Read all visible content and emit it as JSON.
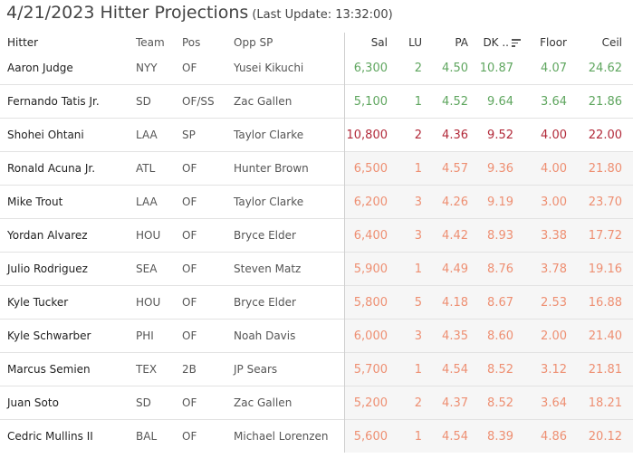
{
  "title": "4/21/2023 Hitter Projections",
  "subtitle": "(Last Update: 13:32:00)",
  "columns": {
    "hitter": "Hitter",
    "team": "Team",
    "pos": "Pos",
    "opp": "Opp SP",
    "sal": "Sal",
    "lu": "LU",
    "pa": "PA",
    "dk": "DK ..",
    "floor": "Floor",
    "ceil": "Ceil"
  },
  "colors": {
    "green": "#5fa65f",
    "red": "#b22a3a",
    "salmon": "#ee8f72"
  },
  "rows": [
    {
      "hitter": "Aaron Judge",
      "team": "NYY",
      "pos": "OF",
      "opp": "Yusei Kikuchi",
      "sal": "6,300",
      "lu": "2",
      "pa": "4.50",
      "dk": "10.87",
      "floor": "4.07",
      "ceil": "24.62",
      "tone": "green"
    },
    {
      "hitter": "Fernando Tatis Jr.",
      "team": "SD",
      "pos": "OF/SS",
      "opp": "Zac Gallen",
      "sal": "5,100",
      "lu": "1",
      "pa": "4.52",
      "dk": "9.64",
      "floor": "3.64",
      "ceil": "21.86",
      "tone": "green"
    },
    {
      "hitter": "Shohei Ohtani",
      "team": "LAA",
      "pos": "SP",
      "opp": "Taylor Clarke",
      "sal": "10,800",
      "lu": "2",
      "pa": "4.36",
      "dk": "9.52",
      "floor": "4.00",
      "ceil": "22.00",
      "tone": "red"
    },
    {
      "hitter": "Ronald Acuna Jr.",
      "team": "ATL",
      "pos": "OF",
      "opp": "Hunter Brown",
      "sal": "6,500",
      "lu": "1",
      "pa": "4.57",
      "dk": "9.36",
      "floor": "4.00",
      "ceil": "21.80",
      "tone": "salmon"
    },
    {
      "hitter": "Mike Trout",
      "team": "LAA",
      "pos": "OF",
      "opp": "Taylor Clarke",
      "sal": "6,200",
      "lu": "3",
      "pa": "4.26",
      "dk": "9.19",
      "floor": "3.00",
      "ceil": "23.70",
      "tone": "salmon"
    },
    {
      "hitter": "Yordan Alvarez",
      "team": "HOU",
      "pos": "OF",
      "opp": "Bryce Elder",
      "sal": "6,400",
      "lu": "3",
      "pa": "4.42",
      "dk": "8.93",
      "floor": "3.38",
      "ceil": "17.72",
      "tone": "salmon"
    },
    {
      "hitter": "Julio Rodriguez",
      "team": "SEA",
      "pos": "OF",
      "opp": "Steven Matz",
      "sal": "5,900",
      "lu": "1",
      "pa": "4.49",
      "dk": "8.76",
      "floor": "3.78",
      "ceil": "19.16",
      "tone": "salmon"
    },
    {
      "hitter": "Kyle Tucker",
      "team": "HOU",
      "pos": "OF",
      "opp": "Bryce Elder",
      "sal": "5,800",
      "lu": "5",
      "pa": "4.18",
      "dk": "8.67",
      "floor": "2.53",
      "ceil": "16.88",
      "tone": "salmon"
    },
    {
      "hitter": "Kyle Schwarber",
      "team": "PHI",
      "pos": "OF",
      "opp": "Noah Davis",
      "sal": "6,000",
      "lu": "3",
      "pa": "4.35",
      "dk": "8.60",
      "floor": "2.00",
      "ceil": "21.40",
      "tone": "salmon"
    },
    {
      "hitter": "Marcus Semien",
      "team": "TEX",
      "pos": "2B",
      "opp": "JP Sears",
      "sal": "5,700",
      "lu": "1",
      "pa": "4.54",
      "dk": "8.52",
      "floor": "3.12",
      "ceil": "21.81",
      "tone": "salmon"
    },
    {
      "hitter": "Juan Soto",
      "team": "SD",
      "pos": "OF",
      "opp": "Zac Gallen",
      "sal": "5,200",
      "lu": "2",
      "pa": "4.37",
      "dk": "8.52",
      "floor": "3.64",
      "ceil": "18.21",
      "tone": "salmon"
    },
    {
      "hitter": "Cedric Mullins II",
      "team": "BAL",
      "pos": "OF",
      "opp": "Michael Lorenzen",
      "sal": "5,600",
      "lu": "1",
      "pa": "4.54",
      "dk": "8.39",
      "floor": "4.86",
      "ceil": "20.12",
      "tone": "salmon"
    }
  ]
}
